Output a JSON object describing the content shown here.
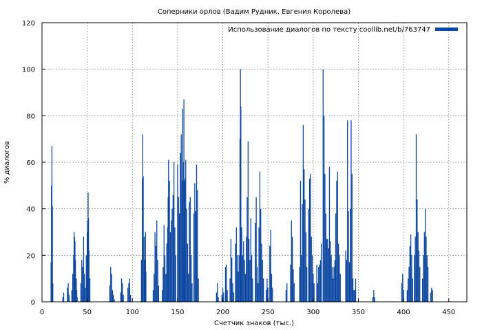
{
  "chart_data": {
    "type": "bar",
    "title": "Соперники орлов (Вадим Рудник, Евгения Королева)",
    "xlabel": "Счетчик знаков (тыс.)",
    "ylabel": "% диалогов",
    "xlim": [
      0,
      470
    ],
    "ylim": [
      0,
      120
    ],
    "xticks": [
      0,
      50,
      100,
      150,
      200,
      250,
      300,
      350,
      400,
      450
    ],
    "yticks": [
      0,
      20,
      40,
      60,
      80,
      100,
      120
    ],
    "grid": true,
    "legend_position": "top-right",
    "series": [
      {
        "name": "Использование диалогов по тексту coollib.net/b/763747",
        "color": "#0d47a1",
        "points": [
          [
            10,
            17
          ],
          [
            10.5,
            50
          ],
          [
            11,
            67
          ],
          [
            11.5,
            41
          ],
          [
            12,
            8
          ],
          [
            23,
            2
          ],
          [
            24,
            4
          ],
          [
            28,
            6
          ],
          [
            29,
            8
          ],
          [
            30,
            3
          ],
          [
            33,
            5
          ],
          [
            34,
            12
          ],
          [
            35,
            20
          ],
          [
            35.5,
            30
          ],
          [
            36,
            28
          ],
          [
            36.5,
            26
          ],
          [
            37,
            18
          ],
          [
            38,
            10
          ],
          [
            38.5,
            5
          ],
          [
            39,
            2
          ],
          [
            43,
            8
          ],
          [
            44,
            18
          ],
          [
            45,
            15
          ],
          [
            46,
            28
          ],
          [
            47,
            12
          ],
          [
            48,
            6
          ],
          [
            49,
            20
          ],
          [
            50,
            30
          ],
          [
            50.5,
            35
          ],
          [
            51,
            47
          ],
          [
            51.5,
            36
          ],
          [
            52,
            22
          ],
          [
            53,
            10
          ],
          [
            75,
            7
          ],
          [
            76,
            15
          ],
          [
            77,
            12
          ],
          [
            78,
            5
          ],
          [
            79,
            3
          ],
          [
            80,
            1
          ],
          [
            87,
            4
          ],
          [
            88,
            10
          ],
          [
            89,
            8
          ],
          [
            90,
            3
          ],
          [
            95,
            6
          ],
          [
            96,
            8
          ],
          [
            97,
            10
          ],
          [
            98,
            3
          ],
          [
            110,
            18
          ],
          [
            111,
            53
          ],
          [
            111.5,
            72
          ],
          [
            112,
            54
          ],
          [
            113,
            28
          ],
          [
            114,
            18
          ],
          [
            114.5,
            30
          ],
          [
            115,
            13
          ],
          [
            123,
            5
          ],
          [
            124,
            12
          ],
          [
            125,
            30
          ],
          [
            126,
            24
          ],
          [
            127,
            35
          ],
          [
            128,
            18
          ],
          [
            129,
            7
          ],
          [
            133,
            5
          ],
          [
            134,
            15
          ],
          [
            135,
            33
          ],
          [
            136,
            20
          ],
          [
            137,
            12
          ],
          [
            138,
            25
          ],
          [
            139,
            32
          ],
          [
            139.5,
            45
          ],
          [
            140,
            61
          ],
          [
            141,
            52
          ],
          [
            142,
            30
          ],
          [
            143,
            35
          ],
          [
            144,
            40
          ],
          [
            145,
            46
          ],
          [
            146,
            60
          ],
          [
            147,
            32
          ],
          [
            148,
            20
          ],
          [
            150,
            59
          ],
          [
            151,
            45
          ],
          [
            152,
            38
          ],
          [
            153,
            64
          ],
          [
            154,
            72
          ],
          [
            155,
            52
          ],
          [
            155.5,
            83
          ],
          [
            156,
            60
          ],
          [
            157,
            87
          ],
          [
            157.5,
            53
          ],
          [
            158,
            52
          ],
          [
            159,
            61
          ],
          [
            160,
            40
          ],
          [
            161,
            25
          ],
          [
            162,
            12
          ],
          [
            163,
            43
          ],
          [
            164,
            45
          ],
          [
            165,
            20
          ],
          [
            166,
            8
          ],
          [
            168,
            38
          ],
          [
            169,
            51
          ],
          [
            170,
            39
          ],
          [
            171,
            59
          ],
          [
            172,
            48
          ],
          [
            173,
            10
          ],
          [
            193,
            4
          ],
          [
            194,
            8
          ],
          [
            195,
            2
          ],
          [
            199,
            3
          ],
          [
            200,
            6
          ],
          [
            201,
            4
          ],
          [
            203,
            15
          ],
          [
            204,
            16
          ],
          [
            205,
            5
          ],
          [
            208,
            10
          ],
          [
            209,
            27
          ],
          [
            210,
            19
          ],
          [
            211,
            8
          ],
          [
            212,
            4
          ],
          [
            214,
            25
          ],
          [
            215,
            32
          ],
          [
            216,
            20
          ],
          [
            217,
            13
          ],
          [
            218,
            20
          ],
          [
            219,
            70
          ],
          [
            219.5,
            100
          ],
          [
            220,
            84
          ],
          [
            221,
            32
          ],
          [
            222,
            20
          ],
          [
            223,
            26
          ],
          [
            224,
            18
          ],
          [
            225,
            12
          ],
          [
            226,
            28
          ],
          [
            227,
            45
          ],
          [
            228,
            69
          ],
          [
            229,
            27
          ],
          [
            230,
            18
          ],
          [
            231,
            36
          ],
          [
            232,
            20
          ],
          [
            233,
            10
          ],
          [
            236,
            34
          ],
          [
            237,
            45
          ],
          [
            238,
            15
          ],
          [
            239,
            8
          ],
          [
            240,
            32
          ],
          [
            241,
            56
          ],
          [
            242,
            40
          ],
          [
            243,
            25
          ],
          [
            244,
            18
          ],
          [
            245,
            10
          ],
          [
            248,
            5
          ],
          [
            249,
            10
          ],
          [
            250,
            6
          ],
          [
            252,
            24
          ],
          [
            253,
            31
          ],
          [
            254,
            12
          ],
          [
            255,
            6
          ],
          [
            270,
            5
          ],
          [
            271,
            8
          ],
          [
            275,
            16
          ],
          [
            276,
            35
          ],
          [
            277,
            28
          ],
          [
            278,
            14
          ],
          [
            279,
            8
          ],
          [
            285,
            15
          ],
          [
            286,
            52
          ],
          [
            287,
            20
          ],
          [
            288,
            42
          ],
          [
            289,
            76
          ],
          [
            290,
            57
          ],
          [
            291,
            44
          ],
          [
            292,
            30
          ],
          [
            293,
            15
          ],
          [
            295,
            40
          ],
          [
            296,
            53
          ],
          [
            297,
            55
          ],
          [
            298,
            28
          ],
          [
            299,
            20
          ],
          [
            300,
            12
          ],
          [
            301,
            8
          ],
          [
            304,
            16
          ],
          [
            305,
            8
          ],
          [
            306,
            15
          ],
          [
            307,
            16
          ],
          [
            308,
            18
          ],
          [
            309,
            25
          ],
          [
            311,
            100
          ],
          [
            312,
            80
          ],
          [
            313,
            55
          ],
          [
            314,
            38
          ],
          [
            315,
            27
          ],
          [
            316,
            27
          ],
          [
            317,
            23
          ],
          [
            318,
            58
          ],
          [
            319,
            26
          ],
          [
            320,
            20
          ],
          [
            321,
            15
          ],
          [
            322,
            10
          ],
          [
            323,
            15
          ],
          [
            324,
            18
          ],
          [
            325,
            38
          ],
          [
            326,
            52
          ],
          [
            327,
            56
          ],
          [
            328,
            25
          ],
          [
            329,
            20
          ],
          [
            330,
            12
          ],
          [
            336,
            22
          ],
          [
            337,
            18
          ],
          [
            338,
            78
          ],
          [
            339,
            39
          ],
          [
            340,
            17
          ],
          [
            341,
            40
          ],
          [
            342,
            78
          ],
          [
            343,
            55
          ],
          [
            344,
            10
          ],
          [
            345,
            5
          ],
          [
            346,
            5
          ],
          [
            347,
            10
          ],
          [
            366,
            2
          ],
          [
            367,
            5
          ],
          [
            368,
            2
          ],
          [
            398,
            8
          ],
          [
            399,
            12
          ],
          [
            400,
            5
          ],
          [
            404,
            5
          ],
          [
            405,
            10
          ],
          [
            406,
            15
          ],
          [
            407,
            24
          ],
          [
            408,
            29
          ],
          [
            409,
            20
          ],
          [
            410,
            10
          ],
          [
            412,
            20
          ],
          [
            413,
            28
          ],
          [
            414,
            72
          ],
          [
            415,
            44
          ],
          [
            416,
            30
          ],
          [
            417,
            22
          ],
          [
            418,
            15
          ],
          [
            421,
            10
          ],
          [
            422,
            20
          ],
          [
            423,
            30
          ],
          [
            424,
            40
          ],
          [
            425,
            28
          ],
          [
            426,
            20
          ],
          [
            427,
            15
          ],
          [
            430,
            4
          ],
          [
            431,
            6
          ],
          [
            432,
            5
          ]
        ]
      }
    ]
  }
}
